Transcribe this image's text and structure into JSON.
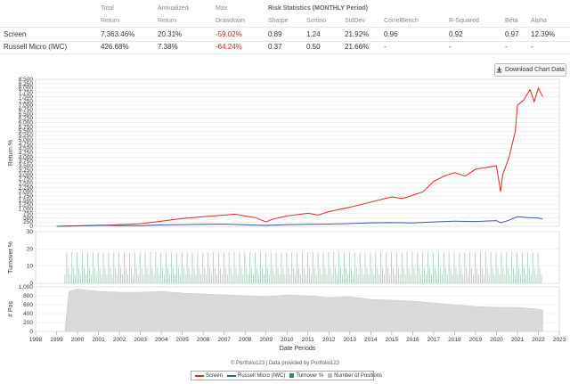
{
  "stats": {
    "headers": [
      {
        "l1": "",
        "l2": ""
      },
      {
        "l1": "Total",
        "l2": "Return"
      },
      {
        "l1": "Annualized",
        "l2": "Return"
      },
      {
        "l1": "Max",
        "l2": "Drawdown"
      },
      {
        "l1": "",
        "l2": "Sharpe"
      },
      {
        "l1": "",
        "l2": "Sortino"
      },
      {
        "l1": "",
        "l2": "StdDev"
      },
      {
        "l1": "",
        "l2": "CorrelBench"
      },
      {
        "l1": "",
        "l2": "R-Squared"
      },
      {
        "l1": "",
        "l2": "Beta"
      },
      {
        "l1": "",
        "l2": "Alpha"
      }
    ],
    "group_title": "Risk Statistics (MONTHLY Period)",
    "rows": [
      [
        "Screen",
        "7,363.46%",
        "20.31%",
        "-59.02%",
        "0.89",
        "1.24",
        "21.92%",
        "0.96",
        "0.92",
        "0.97",
        "12.39%"
      ],
      [
        "Russell Micro (IWC)",
        "426.68%",
        "7.38%",
        "-64.24%",
        "0.37",
        "0.50",
        "21.66%",
        "-",
        "-",
        "-",
        "-"
      ]
    ]
  },
  "download_button": {
    "label": "Download Chart Data",
    "icon": "download-icon"
  },
  "footer_text": "© Portfolio123 | Data provided by Portfolio123",
  "legend": [
    {
      "label": "Screen",
      "color": "#e3262b",
      "kind": "line"
    },
    {
      "label": "Russell Micro (IWC)",
      "color": "#3a5aa8",
      "kind": "line"
    },
    {
      "label": "Turnover %",
      "color": "#2e8b57",
      "kind": "box"
    },
    {
      "label": "Number of Positions",
      "color": "#bdbdbd",
      "kind": "box"
    }
  ],
  "chart_data": [
    {
      "type": "line",
      "ylabel": "Return %",
      "ylim": [
        0,
        8500
      ],
      "yticks": [
        "0",
        "250",
        "500",
        "750",
        "1,000",
        "1,250",
        "1,500",
        "1,750",
        "2,000",
        "2,250",
        "2,500",
        "2,750",
        "3,000",
        "3,250",
        "3,500",
        "3,750",
        "4,000",
        "4,250",
        "4,500",
        "4,750",
        "5,000",
        "5,250",
        "5,500",
        "5,750",
        "6,000",
        "6,250",
        "6,500",
        "6,750",
        "7,000",
        "7,250",
        "7,500",
        "7,750",
        "8,000",
        "8,250",
        "8,500"
      ],
      "series": [
        {
          "name": "Screen",
          "color": "#e3262b",
          "x": [
            1999.0,
            2000.0,
            2001.0,
            2002.0,
            2003.0,
            2004.0,
            2005.0,
            2006.0,
            2007.0,
            2007.5,
            2008.0,
            2008.5,
            2009.0,
            2009.3,
            2010.0,
            2011.0,
            2011.5,
            2012.0,
            2013.0,
            2014.0,
            2015.0,
            2015.5,
            2016.0,
            2016.5,
            2017.0,
            2017.5,
            2018.0,
            2018.5,
            2019.0,
            2019.5,
            2020.0,
            2020.2,
            2020.3,
            2020.6,
            2020.9,
            2021.0,
            2021.3,
            2021.6,
            2021.8,
            2022.0,
            2022.2
          ],
          "y": [
            0,
            20,
            50,
            100,
            150,
            300,
            450,
            550,
            650,
            700,
            600,
            500,
            250,
            400,
            600,
            750,
            650,
            850,
            1100,
            1400,
            1700,
            1600,
            1800,
            2000,
            2600,
            2900,
            3100,
            2900,
            3300,
            3400,
            3500,
            2000,
            3000,
            4000,
            5500,
            7000,
            7300,
            7900,
            7200,
            8000,
            7500
          ]
        },
        {
          "name": "Russell Micro (IWC)",
          "color": "#3a5aa8",
          "x": [
            1999.0,
            2000.0,
            2001.0,
            2002.0,
            2003.0,
            2004.0,
            2005.0,
            2006.0,
            2007.0,
            2008.0,
            2009.0,
            2010.0,
            2011.0,
            2012.0,
            2013.0,
            2014.0,
            2015.0,
            2016.0,
            2017.0,
            2018.0,
            2019.0,
            2020.0,
            2020.2,
            2020.6,
            2021.0,
            2021.5,
            2022.0,
            2022.2
          ],
          "y": [
            0,
            30,
            60,
            40,
            30,
            80,
            100,
            120,
            130,
            90,
            50,
            100,
            120,
            130,
            160,
            200,
            210,
            190,
            250,
            300,
            280,
            330,
            200,
            350,
            550,
            500,
            480,
            430
          ]
        }
      ]
    },
    {
      "type": "bar",
      "ylabel": "Turnover %",
      "ylim": [
        0,
        30
      ],
      "yticks": [
        "0",
        "10",
        "20",
        "30"
      ],
      "series": [
        {
          "name": "Turnover %",
          "color": "#2e8b57"
        }
      ]
    },
    {
      "type": "area",
      "ylabel": "# Pos",
      "ylim": [
        0,
        1000
      ],
      "yticks": [
        "0",
        "200",
        "400",
        "600",
        "800",
        "1,000"
      ],
      "series": [
        {
          "name": "Number of Positions",
          "color": "#bdbdbd",
          "x": [
            1999.0,
            1999.4,
            1999.6,
            2000.0,
            2001.0,
            2002.0,
            2003.0,
            2004.0,
            2005.0,
            2006.0,
            2007.0,
            2008.0,
            2009.0,
            2010.0,
            2011.0,
            2012.0,
            2013.0,
            2014.0,
            2015.0,
            2016.0,
            2017.0,
            2018.0,
            2019.0,
            2020.0,
            2021.0,
            2022.0,
            2022.2
          ],
          "y": [
            0,
            0,
            900,
            950,
            900,
            880,
            880,
            900,
            860,
            840,
            820,
            800,
            780,
            820,
            800,
            760,
            780,
            720,
            700,
            680,
            640,
            600,
            560,
            540,
            540,
            500,
            480
          ]
        }
      ]
    }
  ],
  "xaxis": {
    "label": "Date Periods",
    "xlim": [
      1998,
      2023
    ],
    "ticks": [
      "1998",
      "1999",
      "2000",
      "2001",
      "2002",
      "2003",
      "2004",
      "2005",
      "2006",
      "2007",
      "2008",
      "2009",
      "2010",
      "2011",
      "2012",
      "2013",
      "2014",
      "2015",
      "2016",
      "2017",
      "2018",
      "2019",
      "2020",
      "2021",
      "2022",
      "2023"
    ]
  }
}
